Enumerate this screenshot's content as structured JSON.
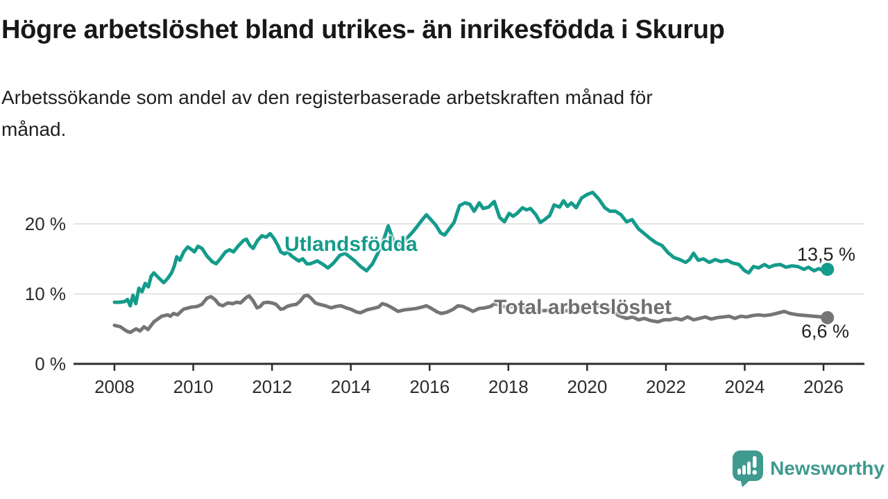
{
  "header": {
    "title": "Högre arbetslöshet bland utrikes- än inrikesfödda i Skurup",
    "subtitle_line1": "Arbetssökande som andel av den registerbaserade arbetskraften månad för",
    "subtitle_line2": "månad."
  },
  "footer": {
    "brand": "Newsworthy",
    "brand_color": "#3f9a8f"
  },
  "chart_data": {
    "type": "line",
    "title": "Högre arbetslöshet bland utrikes- än inrikesfödda i Skurup",
    "xlabel": "",
    "ylabel": "",
    "grid": "horizontal-only",
    "x_axis": {
      "min": 2008,
      "max": 2027,
      "tick_values": [
        2008,
        2010,
        2012,
        2014,
        2016,
        2018,
        2020,
        2022,
        2024,
        2026
      ],
      "tick_labels": [
        "2008",
        "2010",
        "2012",
        "2014",
        "2016",
        "2018",
        "2020",
        "2022",
        "2024",
        "2026"
      ]
    },
    "y_axis": {
      "min": 0,
      "max": 25,
      "tick_values": [
        0,
        10,
        20
      ],
      "tick_labels": [
        "0 %",
        "10 %",
        "20 %"
      ]
    },
    "axis_color": "#2b2b2b",
    "grid_color": "#dcdcdc",
    "tick_label_color": "#2b2b2b",
    "series": [
      {
        "name": "Utlandsfödda",
        "color": "#149b8b",
        "end_label": "13,5 %",
        "end_value": 13.5,
        "points": [
          [
            2008.0,
            8.8
          ],
          [
            2008.13,
            8.8
          ],
          [
            2008.26,
            8.9
          ],
          [
            2008.33,
            9.2
          ],
          [
            2008.4,
            8.3
          ],
          [
            2008.47,
            9.8
          ],
          [
            2008.54,
            8.6
          ],
          [
            2008.62,
            10.8
          ],
          [
            2008.7,
            10.3
          ],
          [
            2008.78,
            11.5
          ],
          [
            2008.86,
            11.0
          ],
          [
            2008.93,
            12.5
          ],
          [
            2009.0,
            13.0
          ],
          [
            2009.12,
            12.3
          ],
          [
            2009.25,
            11.6
          ],
          [
            2009.35,
            12.2
          ],
          [
            2009.45,
            13.0
          ],
          [
            2009.52,
            14.0
          ],
          [
            2009.58,
            15.3
          ],
          [
            2009.66,
            14.8
          ],
          [
            2009.76,
            16.0
          ],
          [
            2009.86,
            16.7
          ],
          [
            2009.94,
            16.4
          ],
          [
            2010.03,
            16.0
          ],
          [
            2010.12,
            16.8
          ],
          [
            2010.22,
            16.5
          ],
          [
            2010.35,
            15.4
          ],
          [
            2010.48,
            14.6
          ],
          [
            2010.58,
            14.3
          ],
          [
            2010.7,
            15.1
          ],
          [
            2010.82,
            16.0
          ],
          [
            2010.92,
            16.3
          ],
          [
            2011.02,
            16.0
          ],
          [
            2011.15,
            16.9
          ],
          [
            2011.27,
            17.6
          ],
          [
            2011.35,
            17.8
          ],
          [
            2011.44,
            16.9
          ],
          [
            2011.52,
            16.5
          ],
          [
            2011.63,
            17.6
          ],
          [
            2011.74,
            18.3
          ],
          [
            2011.85,
            18.1
          ],
          [
            2011.95,
            18.6
          ],
          [
            2012.05,
            17.9
          ],
          [
            2012.15,
            16.9
          ],
          [
            2012.22,
            16.0
          ],
          [
            2012.32,
            15.7
          ],
          [
            2012.4,
            16.0
          ],
          [
            2012.5,
            15.4
          ],
          [
            2012.6,
            15.0
          ],
          [
            2012.68,
            14.7
          ],
          [
            2012.78,
            15.0
          ],
          [
            2012.88,
            14.3
          ],
          [
            2012.97,
            14.3
          ],
          [
            2013.15,
            14.7
          ],
          [
            2013.3,
            14.2
          ],
          [
            2013.42,
            13.7
          ],
          [
            2013.56,
            14.4
          ],
          [
            2013.72,
            15.5
          ],
          [
            2013.85,
            15.8
          ],
          [
            2013.97,
            15.3
          ],
          [
            2014.1,
            14.7
          ],
          [
            2014.25,
            13.9
          ],
          [
            2014.4,
            13.3
          ],
          [
            2014.55,
            14.3
          ],
          [
            2014.72,
            16.2
          ],
          [
            2014.85,
            18.0
          ],
          [
            2014.95,
            19.7
          ],
          [
            2015.08,
            17.6
          ],
          [
            2015.25,
            17.0
          ],
          [
            2015.4,
            17.8
          ],
          [
            2015.55,
            18.7
          ],
          [
            2015.68,
            19.6
          ],
          [
            2015.8,
            20.5
          ],
          [
            2015.92,
            21.3
          ],
          [
            2016.05,
            20.5
          ],
          [
            2016.16,
            19.8
          ],
          [
            2016.28,
            18.7
          ],
          [
            2016.38,
            18.4
          ],
          [
            2016.5,
            19.3
          ],
          [
            2016.62,
            20.2
          ],
          [
            2016.76,
            22.6
          ],
          [
            2016.9,
            23.0
          ],
          [
            2017.02,
            22.8
          ],
          [
            2017.13,
            21.8
          ],
          [
            2017.26,
            23.0
          ],
          [
            2017.36,
            22.2
          ],
          [
            2017.5,
            22.4
          ],
          [
            2017.64,
            23.2
          ],
          [
            2017.78,
            20.9
          ],
          [
            2017.9,
            20.3
          ],
          [
            2018.02,
            21.5
          ],
          [
            2018.12,
            21.1
          ],
          [
            2018.22,
            21.5
          ],
          [
            2018.36,
            22.3
          ],
          [
            2018.46,
            22.0
          ],
          [
            2018.56,
            22.2
          ],
          [
            2018.7,
            21.3
          ],
          [
            2018.81,
            20.2
          ],
          [
            2018.92,
            20.6
          ],
          [
            2019.05,
            21.2
          ],
          [
            2019.16,
            22.7
          ],
          [
            2019.3,
            22.4
          ],
          [
            2019.4,
            23.3
          ],
          [
            2019.5,
            22.5
          ],
          [
            2019.6,
            23.0
          ],
          [
            2019.72,
            22.3
          ],
          [
            2019.86,
            23.7
          ],
          [
            2020.0,
            24.2
          ],
          [
            2020.14,
            24.5
          ],
          [
            2020.3,
            23.5
          ],
          [
            2020.45,
            22.3
          ],
          [
            2020.58,
            21.8
          ],
          [
            2020.72,
            21.8
          ],
          [
            2020.86,
            21.3
          ],
          [
            2021.0,
            20.3
          ],
          [
            2021.14,
            20.6
          ],
          [
            2021.3,
            19.3
          ],
          [
            2021.45,
            18.6
          ],
          [
            2021.6,
            17.9
          ],
          [
            2021.75,
            17.3
          ],
          [
            2021.9,
            16.9
          ],
          [
            2022.05,
            15.9
          ],
          [
            2022.2,
            15.2
          ],
          [
            2022.35,
            14.9
          ],
          [
            2022.5,
            14.5
          ],
          [
            2022.6,
            14.9
          ],
          [
            2022.7,
            15.8
          ],
          [
            2022.82,
            14.8
          ],
          [
            2022.95,
            15.0
          ],
          [
            2023.1,
            14.5
          ],
          [
            2023.25,
            14.9
          ],
          [
            2023.4,
            14.6
          ],
          [
            2023.55,
            14.8
          ],
          [
            2023.7,
            14.4
          ],
          [
            2023.85,
            14.2
          ],
          [
            2024.0,
            13.3
          ],
          [
            2024.1,
            13.0
          ],
          [
            2024.22,
            13.9
          ],
          [
            2024.35,
            13.7
          ],
          [
            2024.5,
            14.2
          ],
          [
            2024.62,
            13.8
          ],
          [
            2024.76,
            14.1
          ],
          [
            2024.9,
            14.2
          ],
          [
            2025.05,
            13.8
          ],
          [
            2025.2,
            14.0
          ],
          [
            2025.35,
            13.9
          ],
          [
            2025.5,
            13.5
          ],
          [
            2025.62,
            13.8
          ],
          [
            2025.76,
            13.3
          ],
          [
            2025.88,
            13.6
          ],
          [
            2026.0,
            13.3
          ],
          [
            2026.1,
            13.5
          ]
        ]
      },
      {
        "name": "Total arbetslöshet",
        "color": "#757575",
        "end_label": "6,6 %",
        "end_value": 6.6,
        "points": [
          [
            2008.0,
            5.5
          ],
          [
            2008.15,
            5.3
          ],
          [
            2008.3,
            4.7
          ],
          [
            2008.4,
            4.5
          ],
          [
            2008.55,
            5.0
          ],
          [
            2008.65,
            4.7
          ],
          [
            2008.75,
            5.3
          ],
          [
            2008.85,
            4.9
          ],
          [
            2009.0,
            6.0
          ],
          [
            2009.2,
            6.8
          ],
          [
            2009.35,
            7.0
          ],
          [
            2009.42,
            6.8
          ],
          [
            2009.5,
            7.2
          ],
          [
            2009.6,
            7.0
          ],
          [
            2009.75,
            7.8
          ],
          [
            2009.95,
            8.1
          ],
          [
            2010.1,
            8.2
          ],
          [
            2010.22,
            8.5
          ],
          [
            2010.35,
            9.4
          ],
          [
            2010.45,
            9.6
          ],
          [
            2010.55,
            9.2
          ],
          [
            2010.65,
            8.5
          ],
          [
            2010.75,
            8.3
          ],
          [
            2010.88,
            8.7
          ],
          [
            2011.0,
            8.6
          ],
          [
            2011.1,
            8.8
          ],
          [
            2011.2,
            8.7
          ],
          [
            2011.35,
            9.5
          ],
          [
            2011.42,
            9.7
          ],
          [
            2011.52,
            9.0
          ],
          [
            2011.62,
            8.0
          ],
          [
            2011.7,
            8.2
          ],
          [
            2011.78,
            8.7
          ],
          [
            2011.88,
            8.8
          ],
          [
            2012.0,
            8.7
          ],
          [
            2012.1,
            8.5
          ],
          [
            2012.22,
            7.8
          ],
          [
            2012.3,
            7.9
          ],
          [
            2012.38,
            8.2
          ],
          [
            2012.5,
            8.4
          ],
          [
            2012.62,
            8.5
          ],
          [
            2012.72,
            9.0
          ],
          [
            2012.82,
            9.7
          ],
          [
            2012.9,
            9.8
          ],
          [
            2012.97,
            9.5
          ],
          [
            2013.1,
            8.7
          ],
          [
            2013.2,
            8.5
          ],
          [
            2013.35,
            8.3
          ],
          [
            2013.5,
            8.0
          ],
          [
            2013.62,
            8.2
          ],
          [
            2013.75,
            8.3
          ],
          [
            2013.88,
            8.0
          ],
          [
            2014.0,
            7.8
          ],
          [
            2014.15,
            7.4
          ],
          [
            2014.25,
            7.3
          ],
          [
            2014.4,
            7.7
          ],
          [
            2014.55,
            7.9
          ],
          [
            2014.7,
            8.1
          ],
          [
            2014.8,
            8.6
          ],
          [
            2014.92,
            8.4
          ],
          [
            2015.05,
            8.0
          ],
          [
            2015.2,
            7.5
          ],
          [
            2015.35,
            7.7
          ],
          [
            2015.5,
            7.8
          ],
          [
            2015.65,
            7.9
          ],
          [
            2015.8,
            8.1
          ],
          [
            2015.92,
            8.3
          ],
          [
            2016.05,
            7.9
          ],
          [
            2016.2,
            7.4
          ],
          [
            2016.3,
            7.2
          ],
          [
            2016.45,
            7.4
          ],
          [
            2016.6,
            7.8
          ],
          [
            2016.72,
            8.3
          ],
          [
            2016.85,
            8.2
          ],
          [
            2017.0,
            7.8
          ],
          [
            2017.1,
            7.5
          ],
          [
            2017.25,
            7.9
          ],
          [
            2017.4,
            8.0
          ],
          [
            2017.55,
            8.2
          ],
          [
            2017.65,
            8.6
          ],
          [
            2017.8,
            8.3
          ],
          [
            2017.95,
            8.1
          ],
          [
            2018.1,
            8.2
          ],
          [
            2018.3,
            8.0
          ],
          [
            2018.5,
            7.9
          ],
          [
            2018.7,
            7.7
          ],
          [
            2018.9,
            7.6
          ],
          [
            2019.1,
            7.7
          ],
          [
            2019.3,
            7.5
          ],
          [
            2019.5,
            7.6
          ],
          [
            2019.7,
            7.4
          ],
          [
            2019.9,
            7.6
          ],
          [
            2020.1,
            8.0
          ],
          [
            2020.3,
            8.3
          ],
          [
            2020.5,
            8.0
          ],
          [
            2020.65,
            7.5
          ],
          [
            2020.8,
            6.9
          ],
          [
            2021.0,
            6.5
          ],
          [
            2021.15,
            6.7
          ],
          [
            2021.3,
            6.3
          ],
          [
            2021.45,
            6.5
          ],
          [
            2021.6,
            6.2
          ],
          [
            2021.8,
            6.0
          ],
          [
            2021.95,
            6.3
          ],
          [
            2022.1,
            6.3
          ],
          [
            2022.25,
            6.5
          ],
          [
            2022.4,
            6.3
          ],
          [
            2022.55,
            6.7
          ],
          [
            2022.7,
            6.3
          ],
          [
            2022.85,
            6.5
          ],
          [
            2023.0,
            6.7
          ],
          [
            2023.15,
            6.4
          ],
          [
            2023.3,
            6.6
          ],
          [
            2023.45,
            6.7
          ],
          [
            2023.6,
            6.8
          ],
          [
            2023.75,
            6.5
          ],
          [
            2023.9,
            6.8
          ],
          [
            2024.05,
            6.7
          ],
          [
            2024.2,
            6.9
          ],
          [
            2024.35,
            7.0
          ],
          [
            2024.5,
            6.9
          ],
          [
            2024.65,
            7.0
          ],
          [
            2024.8,
            7.2
          ],
          [
            2025.0,
            7.5
          ],
          [
            2025.15,
            7.2
          ],
          [
            2025.35,
            7.0
          ],
          [
            2025.55,
            6.9
          ],
          [
            2025.75,
            6.8
          ],
          [
            2025.95,
            6.7
          ],
          [
            2026.1,
            6.6
          ]
        ]
      }
    ]
  }
}
